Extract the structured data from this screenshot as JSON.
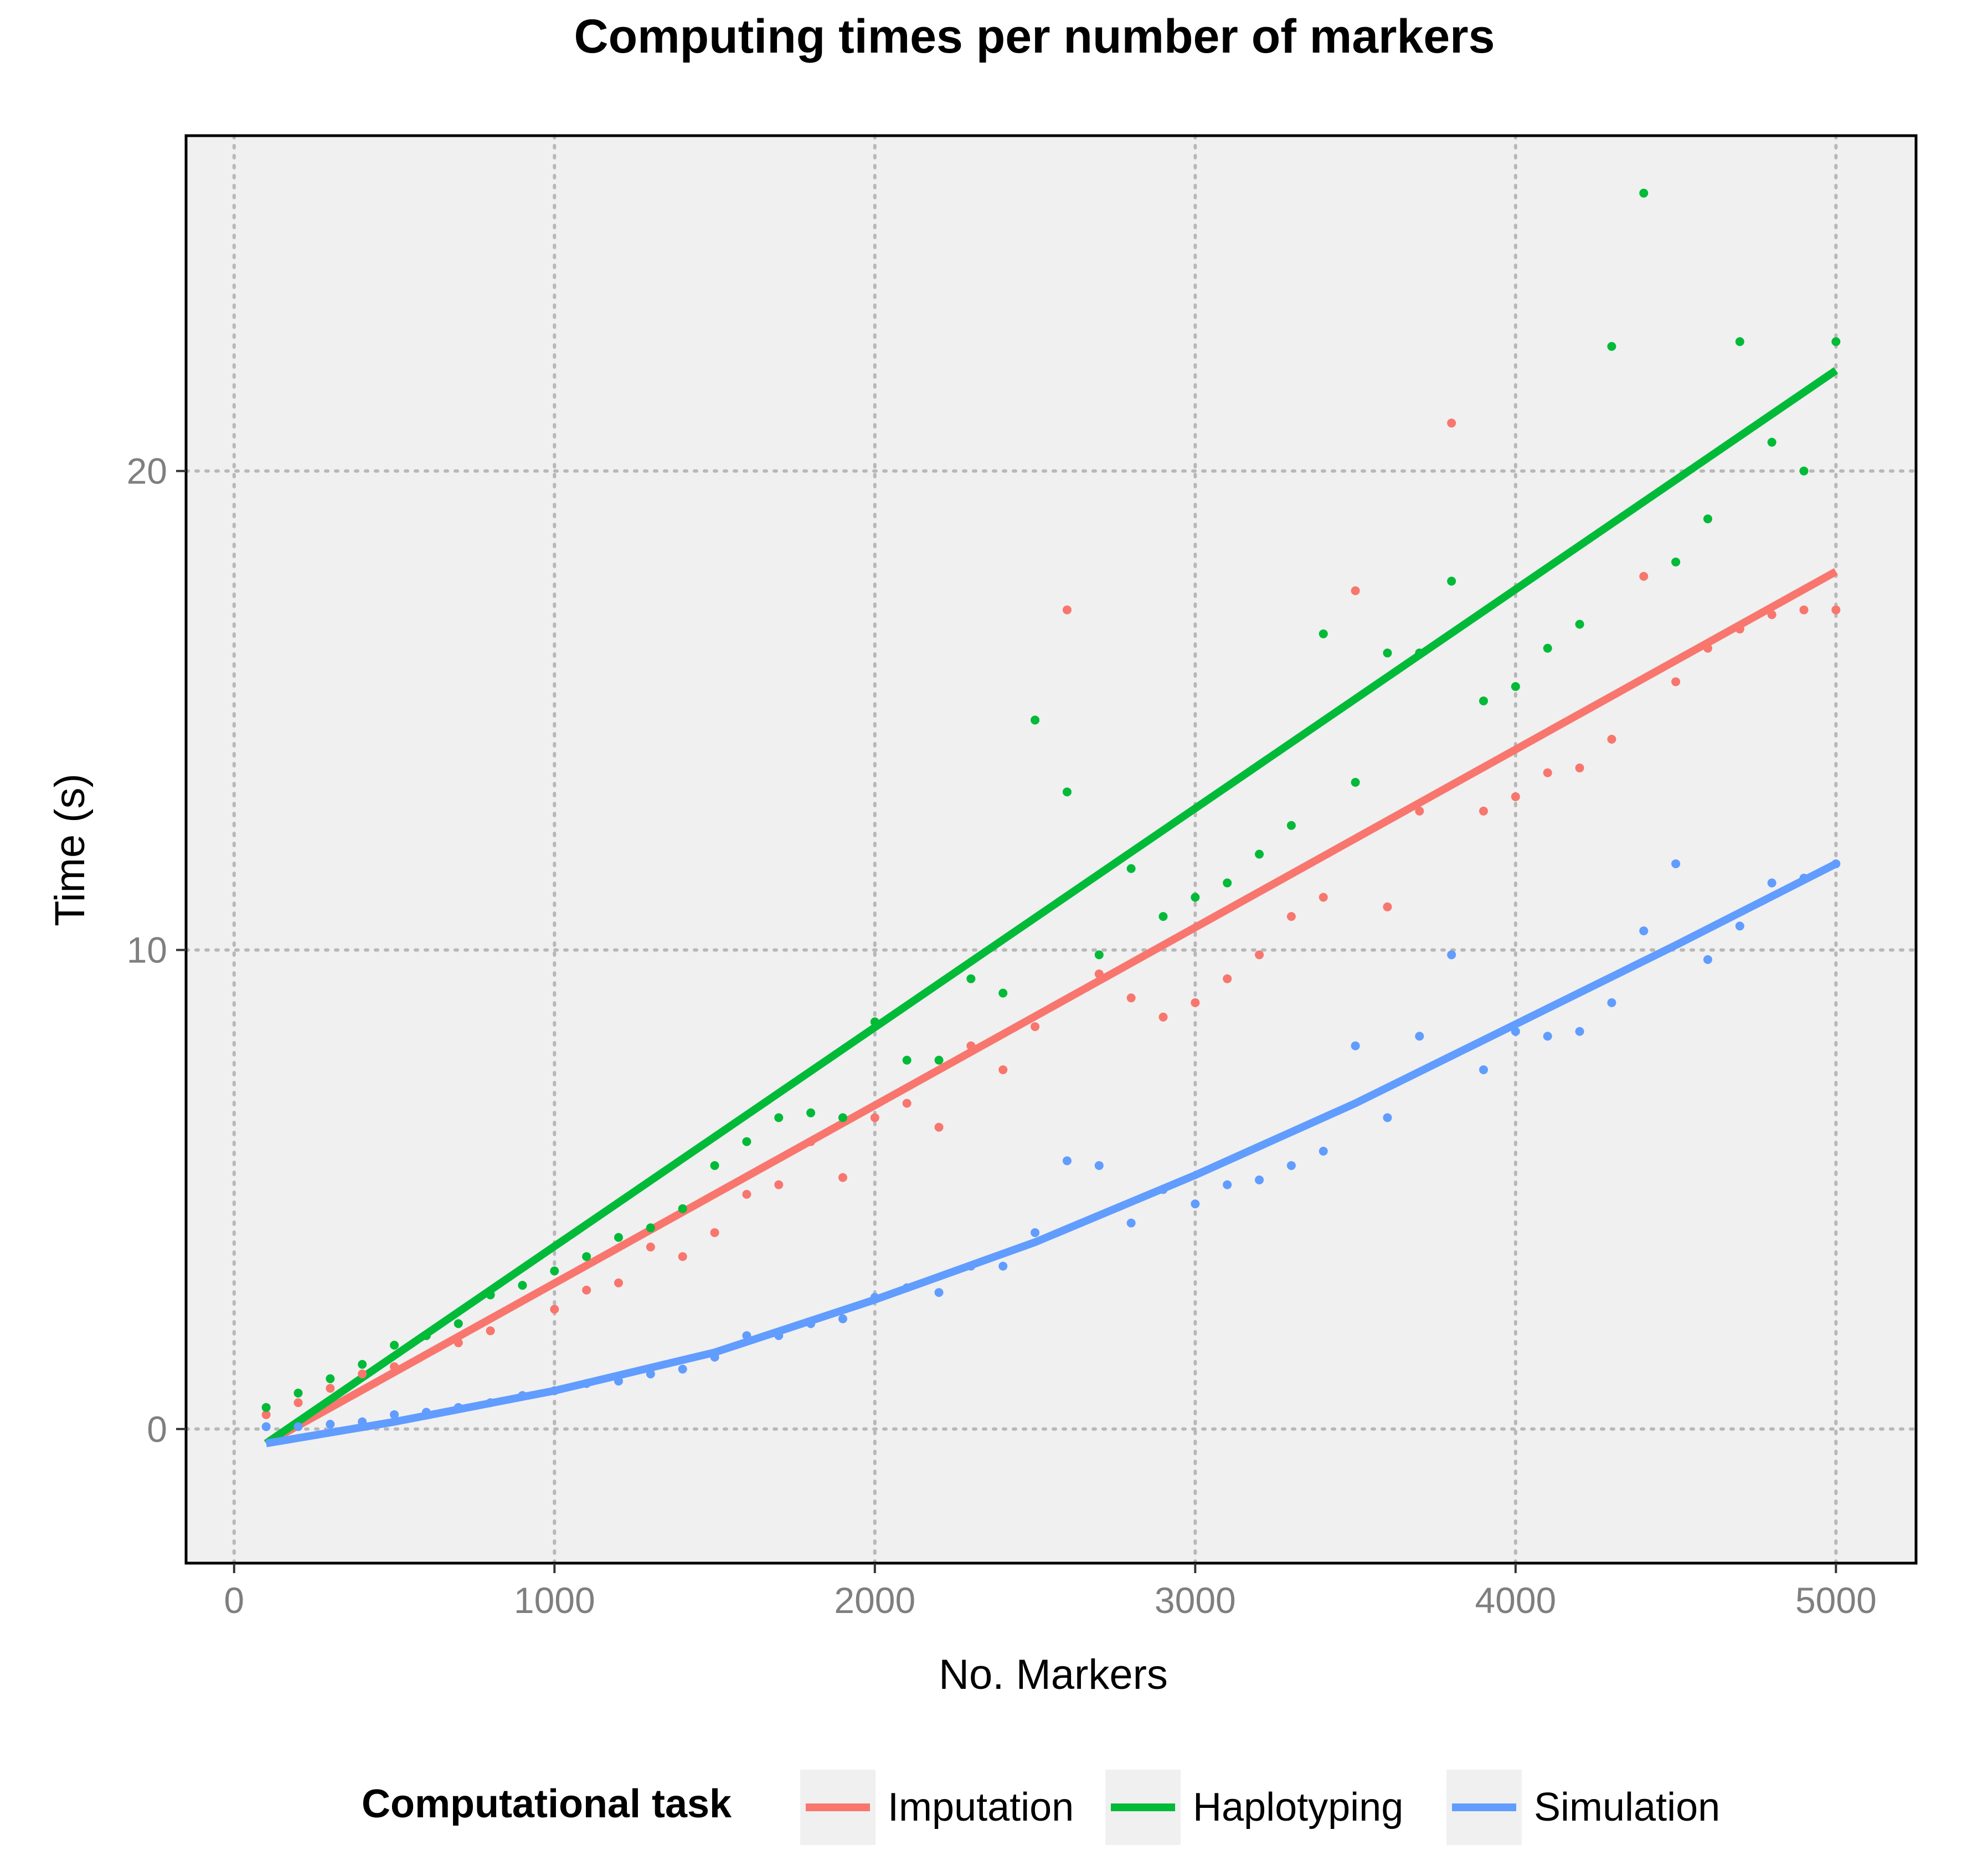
{
  "chart_data": {
    "type": "scatter",
    "title": "Computing times per number of markers",
    "xlabel": "No. Markers",
    "ylabel": "Time (s)",
    "xlim": [
      -150,
      5250
    ],
    "ylim": [
      -2.8,
      27
    ],
    "xticks": [
      0,
      1000,
      2000,
      3000,
      4000,
      5000
    ],
    "yticks": [
      0,
      10,
      20
    ],
    "grid": true,
    "legend": {
      "title": "Computational task",
      "placement": "bottom"
    },
    "series": [
      {
        "name": "Imputation",
        "color": "#F8766D",
        "x": [
          100,
          200,
          300,
          400,
          500,
          600,
          700,
          800,
          900,
          1000,
          1100,
          1200,
          1300,
          1400,
          1500,
          1600,
          1700,
          1800,
          1900,
          2000,
          2100,
          2200,
          2300,
          2400,
          2500,
          2600,
          2700,
          2800,
          2900,
          3000,
          3100,
          3200,
          3300,
          3400,
          3500,
          3600,
          3700,
          3800,
          3900,
          4000,
          4100,
          4200,
          4300,
          4400,
          4500,
          4600,
          4700,
          4800,
          4900,
          5000
        ],
        "y": [
          0.3,
          0.55,
          0.85,
          1.15,
          1.3,
          1.95,
          1.8,
          2.05,
          3.0,
          2.5,
          2.9,
          3.05,
          3.8,
          3.6,
          4.1,
          4.9,
          5.1,
          6.0,
          5.25,
          6.5,
          6.8,
          6.3,
          8.0,
          7.5,
          8.4,
          17.1,
          9.5,
          9.0,
          8.6,
          8.9,
          9.4,
          9.9,
          10.7,
          11.1,
          17.5,
          10.9,
          12.9,
          21.0,
          12.9,
          13.2,
          13.7,
          13.8,
          14.4,
          17.8,
          15.6,
          16.3,
          16.7,
          17.0,
          17.1,
          17.1
        ],
        "fit": [
          [
            100,
            -0.3
          ],
          [
            5000,
            17.9
          ]
        ]
      },
      {
        "name": "Haplotyping",
        "color": "#00BA38",
        "x": [
          100,
          200,
          300,
          400,
          500,
          600,
          700,
          800,
          900,
          1000,
          1100,
          1200,
          1300,
          1400,
          1500,
          1600,
          1700,
          1800,
          1900,
          2000,
          2100,
          2200,
          2300,
          2400,
          2500,
          2600,
          2700,
          2800,
          2900,
          3000,
          3100,
          3200,
          3300,
          3400,
          3500,
          3600,
          3700,
          3800,
          3900,
          4000,
          4100,
          4200,
          4300,
          4400,
          4500,
          4600,
          4700,
          4800,
          4900,
          5000
        ],
        "y": [
          0.45,
          0.75,
          1.05,
          1.35,
          1.75,
          1.95,
          2.2,
          2.8,
          3.0,
          3.3,
          3.6,
          4.0,
          4.2,
          4.6,
          5.5,
          6.0,
          6.5,
          6.6,
          6.5,
          8.5,
          7.7,
          7.7,
          9.4,
          9.1,
          14.8,
          13.3,
          9.9,
          11.7,
          10.7,
          11.1,
          11.4,
          12.0,
          12.6,
          16.6,
          13.5,
          16.2,
          16.2,
          17.7,
          15.2,
          15.5,
          16.3,
          16.8,
          22.6,
          25.8,
          18.1,
          19.0,
          22.7,
          20.6,
          20.0,
          22.7
        ],
        "fit": [
          [
            100,
            -0.3
          ],
          [
            5000,
            22.1
          ]
        ]
      },
      {
        "name": "Simulation",
        "color": "#619CFF",
        "x": [
          100,
          200,
          300,
          400,
          500,
          600,
          700,
          800,
          900,
          1000,
          1100,
          1200,
          1300,
          1400,
          1500,
          1600,
          1700,
          1800,
          1900,
          2000,
          2100,
          2200,
          2300,
          2400,
          2500,
          2600,
          2700,
          2800,
          2900,
          3000,
          3100,
          3200,
          3300,
          3400,
          3500,
          3600,
          3700,
          3800,
          3900,
          4000,
          4100,
          4200,
          4300,
          4400,
          4500,
          4600,
          4700,
          4800,
          4900,
          5000
        ],
        "y": [
          0.05,
          0.05,
          0.1,
          0.15,
          0.3,
          0.35,
          0.45,
          0.55,
          0.7,
          0.8,
          0.95,
          1.0,
          1.15,
          1.25,
          1.5,
          1.95,
          1.95,
          2.2,
          2.3,
          2.75,
          2.95,
          2.85,
          3.4,
          3.4,
          4.1,
          5.6,
          5.5,
          4.3,
          5.0,
          4.7,
          5.1,
          5.2,
          5.5,
          5.8,
          8.0,
          6.5,
          8.2,
          9.9,
          7.5,
          8.3,
          8.2,
          8.3,
          8.9,
          10.4,
          11.8,
          9.8,
          10.5,
          11.4,
          11.5,
          11.8
        ],
        "fit": [
          [
            100,
            -0.3
          ],
          [
            500,
            0.15
          ],
          [
            1000,
            0.8
          ],
          [
            1500,
            1.6
          ],
          [
            2000,
            2.7
          ],
          [
            2500,
            3.9
          ],
          [
            3000,
            5.3
          ],
          [
            3500,
            6.8
          ],
          [
            4000,
            8.45
          ],
          [
            4500,
            10.1
          ],
          [
            5000,
            11.8
          ]
        ]
      }
    ]
  }
}
